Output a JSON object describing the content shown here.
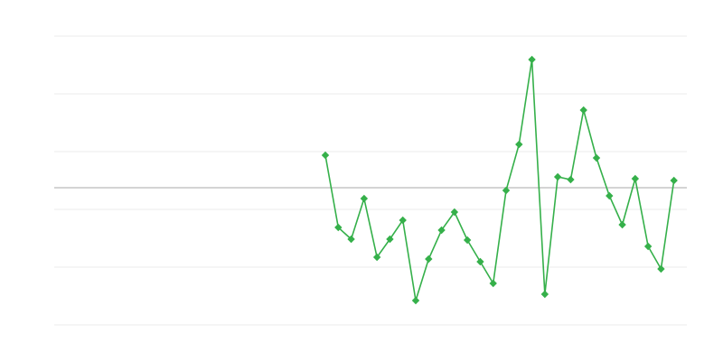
{
  "chart_data": {
    "type": "line",
    "title": "",
    "xlabel": "",
    "ylabel": "",
    "xlim": [
      0,
      49
    ],
    "ylim": [
      -152,
      168
    ],
    "grid": true,
    "gridlines_y": [
      168,
      104,
      40,
      -24,
      -88,
      -152
    ],
    "baseline_y": 0,
    "legend": "none",
    "colors": {
      "series": "#35b04a",
      "grid": "#ebebeb",
      "baseline": "#a8a8a8"
    },
    "series": [
      {
        "x": [
          21,
          22,
          23,
          24,
          25,
          26,
          27,
          28,
          29,
          30,
          31,
          32,
          33,
          34,
          35,
          36,
          37,
          38,
          39,
          40,
          41,
          42,
          43,
          44,
          45,
          46,
          47,
          48
        ],
        "values": [
          36,
          -44,
          -57,
          -12,
          -77,
          -57,
          -36,
          -125,
          -79,
          -47,
          -27,
          -58,
          -82,
          -106,
          -3,
          48,
          142,
          -118,
          12,
          9,
          86,
          33,
          -9,
          -41,
          10,
          -65,
          -90,
          8
        ],
        "marker": "diamond"
      }
    ]
  }
}
